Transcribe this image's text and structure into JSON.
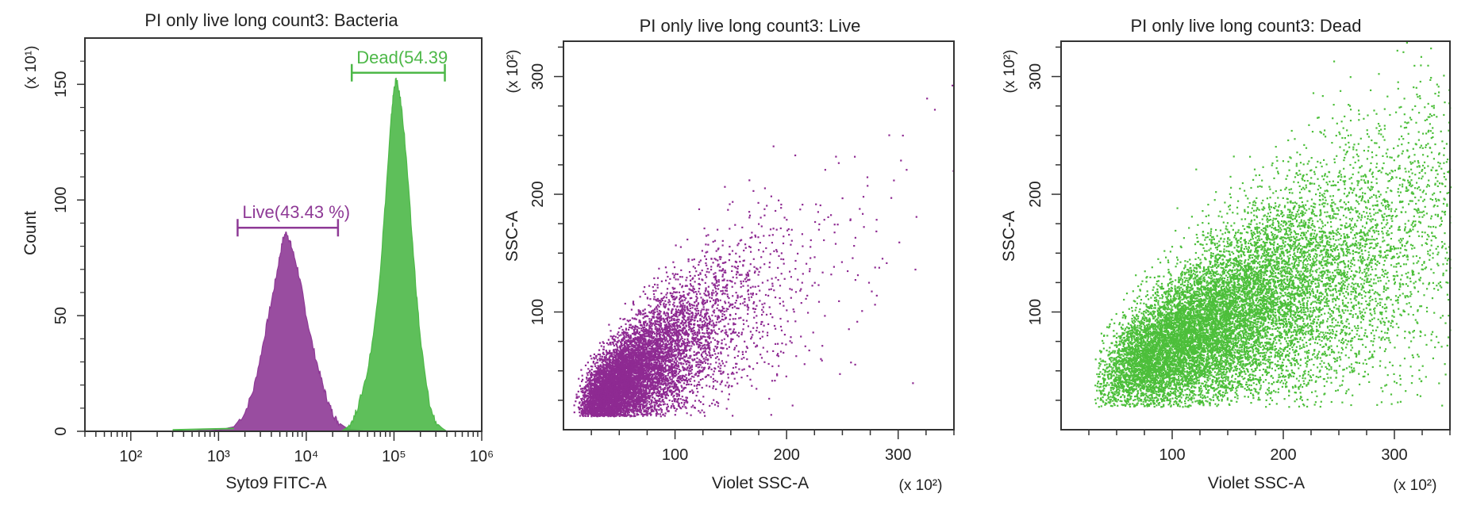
{
  "chart_data": [
    {
      "type": "histogram",
      "title": "PI only live long count3: Bacteria",
      "xlabel": "Syto9 FITC-A",
      "ylabel": "Count",
      "y_multiplier": "(x 10¹)",
      "x_scale": "log",
      "xlim": [
        30,
        1000000
      ],
      "ylim": [
        0,
        170
      ],
      "x_ticks": [
        {
          "value": 100,
          "label": "10²"
        },
        {
          "value": 1000,
          "label": "10³"
        },
        {
          "value": 10000,
          "label": "10⁴"
        },
        {
          "value": 100000,
          "label": "10⁵"
        },
        {
          "value": 1000000,
          "label": "10⁶"
        }
      ],
      "y_ticks": [
        0,
        50,
        100,
        150
      ],
      "series": [
        {
          "name": "Live",
          "color": "#8e3a96",
          "points": [
            [
              300,
              0
            ],
            [
              1000,
              0.5
            ],
            [
              1500,
              2
            ],
            [
              2000,
              8
            ],
            [
              2500,
              18
            ],
            [
              3000,
              32
            ],
            [
              3500,
              45
            ],
            [
              4000,
              56
            ],
            [
              4500,
              66
            ],
            [
              5000,
              76
            ],
            [
              5500,
              84
            ],
            [
              6000,
              86
            ],
            [
              6500,
              82
            ],
            [
              7000,
              78
            ],
            [
              8000,
              70
            ],
            [
              9000,
              60
            ],
            [
              10000,
              50
            ],
            [
              12000,
              36
            ],
            [
              14000,
              26
            ],
            [
              16000,
              18
            ],
            [
              18000,
              12
            ],
            [
              20000,
              8
            ],
            [
              22000,
              5
            ],
            [
              25000,
              3
            ],
            [
              30000,
              1
            ],
            [
              40000,
              0.5
            ],
            [
              50000,
              0
            ]
          ]
        },
        {
          "name": "Dead",
          "color": "#4db848",
          "points": [
            [
              25000,
              0
            ],
            [
              30000,
              2
            ],
            [
              35000,
              6
            ],
            [
              40000,
              12
            ],
            [
              50000,
              26
            ],
            [
              60000,
              45
            ],
            [
              70000,
              70
            ],
            [
              80000,
              100
            ],
            [
              90000,
              128
            ],
            [
              95000,
              140
            ],
            [
              100000,
              148
            ],
            [
              105000,
              152
            ],
            [
              110000,
              150
            ],
            [
              120000,
              142
            ],
            [
              130000,
              130
            ],
            [
              140000,
              115
            ],
            [
              160000,
              85
            ],
            [
              180000,
              60
            ],
            [
              200000,
              40
            ],
            [
              230000,
              22
            ],
            [
              260000,
              10
            ],
            [
              300000,
              4
            ],
            [
              350000,
              1.5
            ],
            [
              400000,
              0
            ]
          ]
        }
      ],
      "gates": [
        {
          "label": "Live(43.43 %)",
          "color": "#8e3a96",
          "x_range": [
            1650,
            23000
          ],
          "y": 88
        },
        {
          "label": "Dead(54.39",
          "color": "#4db848",
          "x_range": [
            33000,
            380000
          ],
          "y": 155
        }
      ]
    },
    {
      "type": "scatter",
      "title": "PI only live long count3: Live",
      "xlabel": "Violet SSC-A",
      "ylabel": "SSC-A",
      "x_multiplier": "(x 10²)",
      "y_multiplier": "(x 10²)",
      "xlim": [
        0,
        350
      ],
      "ylim": [
        0,
        330
      ],
      "x_ticks": [
        100,
        200,
        300
      ],
      "y_ticks": [
        100,
        200,
        300
      ],
      "color": "#8e2a92",
      "distribution": {
        "x_center": 60,
        "y_center": 45,
        "x_range": [
          5,
          350
        ],
        "y_range": [
          12,
          330
        ],
        "slope": 0.62
      }
    },
    {
      "type": "scatter",
      "title": "PI only live long count3: Dead",
      "xlabel": "Violet SSC-A",
      "ylabel": "SSC-A",
      "x_multiplier": "(x 10²)",
      "y_multiplier": "(x 10²)",
      "xlim": [
        0,
        350
      ],
      "ylim": [
        0,
        330
      ],
      "x_ticks": [
        100,
        200,
        300
      ],
      "y_ticks": [
        100,
        200,
        300
      ],
      "color": "#4cbf3a",
      "distribution": {
        "x_center": 150,
        "y_center": 95,
        "x_range": [
          30,
          350
        ],
        "y_range": [
          20,
          330
        ],
        "slope": 0.45
      }
    }
  ]
}
